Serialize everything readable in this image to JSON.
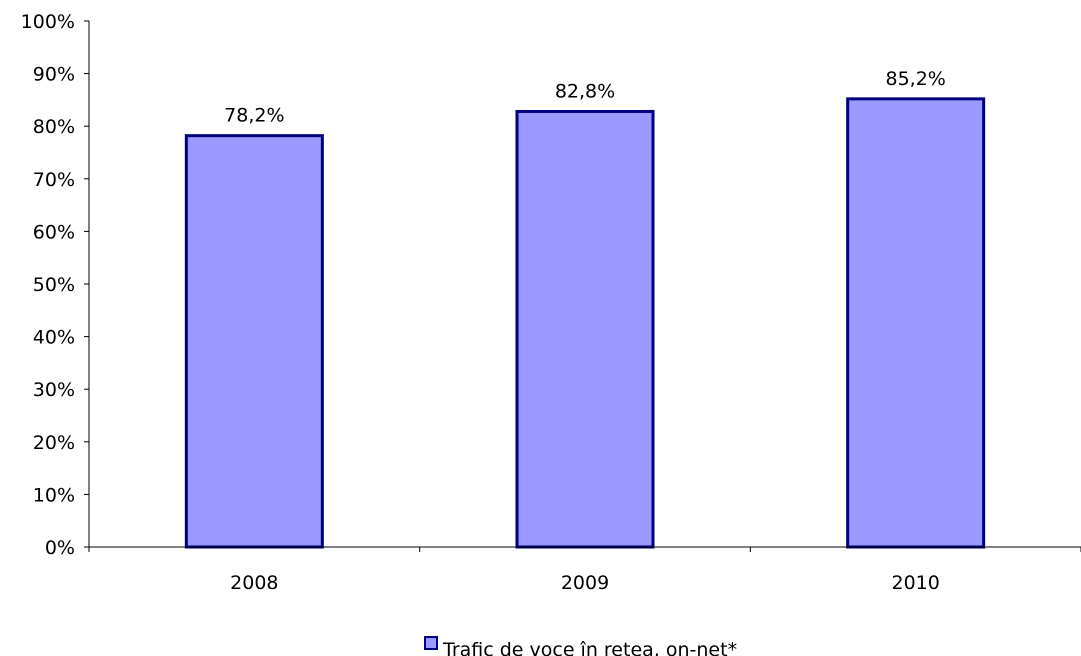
{
  "chart_data": {
    "type": "bar",
    "categories": [
      "2008",
      "2009",
      "2010"
    ],
    "series": [
      {
        "name": "Trafic de voce în retea, on-net*",
        "values": [
          78.2,
          82.8,
          85.2
        ],
        "data_labels": [
          "78,2%",
          "82,8%",
          "85,2%"
        ],
        "color": "#9999ff",
        "border_color": "#000080"
      }
    ],
    "title": "",
    "xlabel": "",
    "ylabel": "",
    "ylim": [
      0,
      100
    ],
    "y_ticks": [
      0,
      10,
      20,
      30,
      40,
      50,
      60,
      70,
      80,
      90,
      100
    ],
    "y_tick_labels": [
      "0%",
      "10%",
      "20%",
      "30%",
      "40%",
      "50%",
      "60%",
      "70%",
      "80%",
      "90%",
      "100%"
    ],
    "grid": false,
    "legend": {
      "position": "bottom",
      "entries": [
        "Trafic de voce în retea, on-net*"
      ]
    }
  }
}
